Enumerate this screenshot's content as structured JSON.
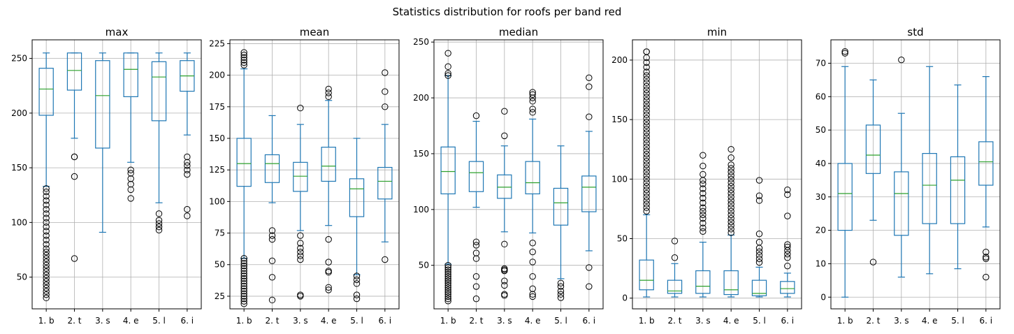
{
  "figure": {
    "title": "Statistics distribution for roofs per band red",
    "box_color": "#1f77b4",
    "median_color": "#2ca02c",
    "grid": true
  },
  "chart_data": [
    {
      "type": "boxplot",
      "title": "max",
      "categories": [
        "1. b",
        "2. t",
        "3. s",
        "4. e",
        "5. l",
        "6. i"
      ],
      "ylim": [
        21,
        267
      ],
      "yticks": [
        50,
        100,
        150,
        200,
        250
      ],
      "boxes": [
        {
          "whislo": 133,
          "q1": 198,
          "med": 222,
          "q3": 241,
          "whishi": 255,
          "fliers": [
            31,
            34,
            37,
            40,
            43,
            46,
            49,
            52,
            55,
            58,
            61,
            64,
            67,
            70,
            73,
            76,
            80,
            84,
            88,
            92,
            96,
            100,
            104,
            108,
            112,
            116,
            120,
            124,
            128,
            131
          ]
        },
        {
          "whislo": 177,
          "q1": 221,
          "med": 239,
          "q3": 255,
          "whishi": 255,
          "fliers": [
            67,
            142,
            160,
            160
          ]
        },
        {
          "whislo": 91,
          "q1": 168,
          "med": 216,
          "q3": 248,
          "whishi": 255,
          "fliers": []
        },
        {
          "whislo": 155,
          "q1": 215,
          "med": 240,
          "q3": 255,
          "whishi": 255,
          "fliers": [
            122,
            130,
            135,
            140,
            145,
            148
          ]
        },
        {
          "whislo": 118,
          "q1": 193,
          "med": 233,
          "q3": 247,
          "whishi": 255,
          "fliers": [
            93,
            96,
            99,
            102,
            108
          ]
        },
        {
          "whislo": 180,
          "q1": 220,
          "med": 234,
          "q3": 248,
          "whishi": 255,
          "fliers": [
            106,
            112,
            144,
            148,
            152,
            155,
            160
          ]
        }
      ]
    },
    {
      "type": "boxplot",
      "title": "mean",
      "categories": [
        "1. b",
        "2. t",
        "3. s",
        "4. e",
        "5. l",
        "6. i"
      ],
      "ylim": [
        15,
        228
      ],
      "yticks": [
        25,
        50,
        75,
        100,
        125,
        150,
        175,
        200,
        225
      ],
      "boxes": [
        {
          "whislo": 55,
          "q1": 112,
          "med": 130,
          "q3": 150,
          "whishi": 205,
          "fliers": [
            19,
            21,
            23,
            25,
            27,
            29,
            31,
            33,
            35,
            37,
            39,
            41,
            43,
            45,
            47,
            49,
            51,
            53,
            55,
            208,
            210,
            212,
            214,
            216,
            218
          ]
        },
        {
          "whislo": 99,
          "q1": 115,
          "med": 130,
          "q3": 137,
          "whishi": 168,
          "fliers": [
            22,
            40,
            53,
            70,
            73,
            77
          ]
        },
        {
          "whislo": 77,
          "q1": 108,
          "med": 120,
          "q3": 131,
          "whishi": 161,
          "fliers": [
            25,
            26,
            54,
            57,
            60,
            63,
            67,
            73,
            174
          ]
        },
        {
          "whislo": 81,
          "q1": 116,
          "med": 128,
          "q3": 143,
          "whishi": 180,
          "fliers": [
            30,
            32,
            44,
            45,
            52,
            70,
            183,
            186,
            189
          ]
        },
        {
          "whislo": 42,
          "q1": 88,
          "med": 110,
          "q3": 118,
          "whishi": 150,
          "fliers": [
            23,
            26,
            35,
            38,
            41
          ]
        },
        {
          "whislo": 68,
          "q1": 102,
          "med": 116,
          "q3": 127,
          "whishi": 161,
          "fliers": [
            54,
            175,
            187,
            202
          ]
        }
      ]
    },
    {
      "type": "boxplot",
      "title": "median",
      "categories": [
        "1. b",
        "2. t",
        "3. s",
        "4. e",
        "5. l",
        "6. i"
      ],
      "ylim": [
        11,
        252
      ],
      "yticks": [
        50,
        100,
        150,
        200,
        250
      ],
      "boxes": [
        {
          "whislo": 51,
          "q1": 114,
          "med": 134,
          "q3": 156,
          "whishi": 220,
          "fliers": [
            18,
            20,
            22,
            24,
            26,
            28,
            30,
            32,
            34,
            36,
            38,
            40,
            42,
            44,
            46,
            48,
            50,
            220,
            222,
            228,
            240
          ]
        },
        {
          "whislo": 102,
          "q1": 116,
          "med": 133,
          "q3": 143,
          "whishi": 179,
          "fliers": [
            20,
            31,
            40,
            56,
            61,
            68,
            71,
            184
          ]
        },
        {
          "whislo": 80,
          "q1": 110,
          "med": 120,
          "q3": 131,
          "whishi": 157,
          "fliers": [
            23,
            24,
            32,
            36,
            45,
            46,
            47,
            69,
            166,
            188
          ]
        },
        {
          "whislo": 79,
          "q1": 114,
          "med": 124,
          "q3": 143,
          "whishi": 181,
          "fliers": [
            22,
            24,
            29,
            40,
            53,
            62,
            70,
            187,
            190,
            197,
            200,
            203,
            205
          ]
        },
        {
          "whislo": 38,
          "q1": 86,
          "med": 106,
          "q3": 119,
          "whishi": 157,
          "fliers": [
            21,
            24,
            27,
            31,
            34
          ]
        },
        {
          "whislo": 63,
          "q1": 98,
          "med": 120,
          "q3": 130,
          "whishi": 170,
          "fliers": [
            31,
            48,
            183,
            210,
            218
          ]
        }
      ]
    },
    {
      "type": "boxplot",
      "title": "min",
      "categories": [
        "1. b",
        "2. t",
        "3. s",
        "4. e",
        "5. l",
        "6. i"
      ],
      "ylim": [
        -9,
        217
      ],
      "yticks": [
        0,
        50,
        100,
        150,
        200
      ],
      "boxes": [
        {
          "whislo": 1,
          "q1": 7,
          "med": 15,
          "q3": 32,
          "whishi": 70,
          "fliers": [
            73,
            76,
            79,
            82,
            85,
            88,
            91,
            94,
            97,
            100,
            103,
            106,
            109,
            112,
            115,
            118,
            121,
            124,
            127,
            130,
            133,
            136,
            139,
            142,
            145,
            148,
            151,
            154,
            157,
            160,
            163,
            166,
            169,
            172,
            175,
            178,
            181,
            184,
            187,
            190,
            194,
            198,
            202,
            207,
            207
          ]
        },
        {
          "whislo": 1,
          "q1": 4,
          "med": 6,
          "q3": 15,
          "whishi": 29,
          "fliers": [
            34,
            48
          ]
        },
        {
          "whislo": 1,
          "q1": 4,
          "med": 10,
          "q3": 23,
          "whishi": 47,
          "fliers": [
            56,
            59,
            63,
            67,
            70,
            73,
            76,
            80,
            84,
            88,
            92,
            96,
            99,
            104,
            111,
            120
          ]
        },
        {
          "whislo": 1,
          "q1": 3,
          "med": 7,
          "q3": 23,
          "whishi": 53,
          "fliers": [
            55,
            58,
            61,
            64,
            67,
            70,
            73,
            76,
            79,
            82,
            85,
            88,
            91,
            94,
            97,
            100,
            103,
            106,
            109,
            112,
            118,
            125
          ]
        },
        {
          "whislo": 1,
          "q1": 2,
          "med": 4,
          "q3": 15,
          "whishi": 26,
          "fliers": [
            30,
            33,
            36,
            39,
            42,
            47,
            54,
            82,
            86,
            99
          ]
        },
        {
          "whislo": 1,
          "q1": 4,
          "med": 8,
          "q3": 14,
          "whishi": 21,
          "fliers": [
            27,
            34,
            37,
            40,
            43,
            45,
            69,
            87,
            91
          ]
        }
      ]
    },
    {
      "type": "boxplot",
      "title": "std",
      "categories": [
        "1. b",
        "2. t",
        "3. s",
        "4. e",
        "5. l",
        "6. i"
      ],
      "ylim": [
        -3.5,
        77
      ],
      "yticks": [
        0,
        10,
        20,
        30,
        40,
        50,
        60,
        70
      ],
      "boxes": [
        {
          "whislo": 0,
          "q1": 20,
          "med": 31,
          "q3": 40,
          "whishi": 69,
          "fliers": [
            73,
            73.5
          ]
        },
        {
          "whislo": 23,
          "q1": 37,
          "med": 42.5,
          "q3": 51.5,
          "whishi": 65,
          "fliers": [
            10.5
          ]
        },
        {
          "whislo": 6,
          "q1": 18.5,
          "med": 31,
          "q3": 37.5,
          "whishi": 55,
          "fliers": [
            71
          ]
        },
        {
          "whislo": 7,
          "q1": 22,
          "med": 33.5,
          "q3": 43,
          "whishi": 69,
          "fliers": []
        },
        {
          "whislo": 8.5,
          "q1": 22,
          "med": 35,
          "q3": 42,
          "whishi": 63.5,
          "fliers": []
        },
        {
          "whislo": 21,
          "q1": 33.5,
          "med": 40.5,
          "q3": 46.5,
          "whishi": 66,
          "fliers": [
            6,
            11.5,
            12,
            13.5
          ]
        }
      ]
    }
  ]
}
